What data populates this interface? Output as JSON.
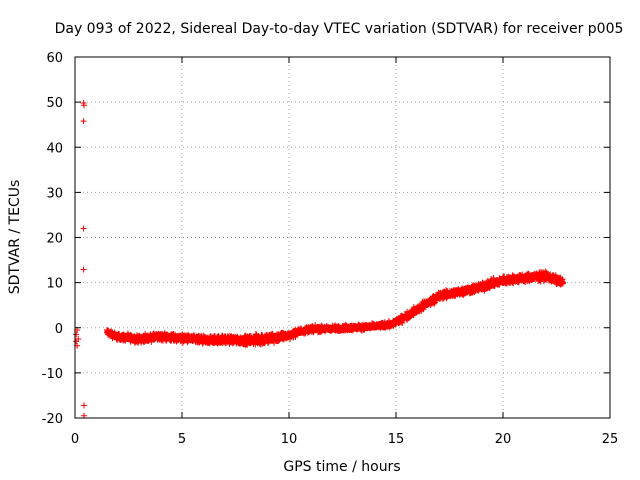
{
  "chart_data": {
    "type": "scatter",
    "title": "Day 093 of 2022, Sidereal Day-to-day VTEC variation (SDTVAR) for receiver p005",
    "xlabel": "GPS time / hours",
    "ylabel": "SDTVAR / TECUs",
    "xlim": [
      0,
      25
    ],
    "ylim": [
      -20,
      60
    ],
    "xticks": [
      0,
      5,
      10,
      15,
      20,
      25
    ],
    "yticks": [
      -20,
      -10,
      0,
      10,
      20,
      30,
      40,
      50,
      60
    ],
    "grid": true,
    "marker": "+",
    "series_color": "#ff0000",
    "outliers": [
      {
        "x": 0.05,
        "y": -1.5
      },
      {
        "x": 0.05,
        "y": -3.0
      },
      {
        "x": 0.1,
        "y": -4.0
      },
      {
        "x": 0.1,
        "y": -0.5
      },
      {
        "x": 0.15,
        "y": -2.5
      },
      {
        "x": 0.4,
        "y": 49.8
      },
      {
        "x": 0.42,
        "y": 49.3
      },
      {
        "x": 0.4,
        "y": 45.8
      },
      {
        "x": 0.4,
        "y": 22.0
      },
      {
        "x": 0.4,
        "y": 12.9
      },
      {
        "x": 0.42,
        "y": -17.2
      },
      {
        "x": 0.42,
        "y": -19.5
      }
    ],
    "trend": [
      {
        "x": 1.5,
        "y": -1.0
      },
      {
        "x": 2.0,
        "y": -2.0
      },
      {
        "x": 3.0,
        "y": -2.5
      },
      {
        "x": 4.0,
        "y": -2.0
      },
      {
        "x": 5.0,
        "y": -2.3
      },
      {
        "x": 6.0,
        "y": -2.8
      },
      {
        "x": 7.0,
        "y": -2.6
      },
      {
        "x": 8.0,
        "y": -2.8
      },
      {
        "x": 9.0,
        "y": -2.5
      },
      {
        "x": 10.0,
        "y": -1.7
      },
      {
        "x": 10.5,
        "y": -0.8
      },
      {
        "x": 11.0,
        "y": -0.3
      },
      {
        "x": 12.0,
        "y": -0.2
      },
      {
        "x": 13.0,
        "y": 0.0
      },
      {
        "x": 14.0,
        "y": 0.3
      },
      {
        "x": 14.8,
        "y": 0.8
      },
      {
        "x": 15.3,
        "y": 2.0
      },
      {
        "x": 15.8,
        "y": 3.5
      },
      {
        "x": 16.5,
        "y": 5.5
      },
      {
        "x": 17.0,
        "y": 7.0
      },
      {
        "x": 18.0,
        "y": 8.0
      },
      {
        "x": 19.0,
        "y": 9.0
      },
      {
        "x": 20.0,
        "y": 10.5
      },
      {
        "x": 21.0,
        "y": 11.0
      },
      {
        "x": 22.0,
        "y": 11.5
      },
      {
        "x": 22.8,
        "y": 10.0
      }
    ],
    "trend_spread": [
      {
        "x": 1.5,
        "s": 1.0
      },
      {
        "x": 5.0,
        "s": 1.2
      },
      {
        "x": 8.0,
        "s": 1.3
      },
      {
        "x": 9.0,
        "s": 1.8
      },
      {
        "x": 10.0,
        "s": 1.0
      },
      {
        "x": 14.0,
        "s": 0.8
      },
      {
        "x": 16.0,
        "s": 1.2
      },
      {
        "x": 18.0,
        "s": 1.2
      },
      {
        "x": 20.0,
        "s": 1.3
      },
      {
        "x": 22.8,
        "s": 1.3
      }
    ]
  }
}
